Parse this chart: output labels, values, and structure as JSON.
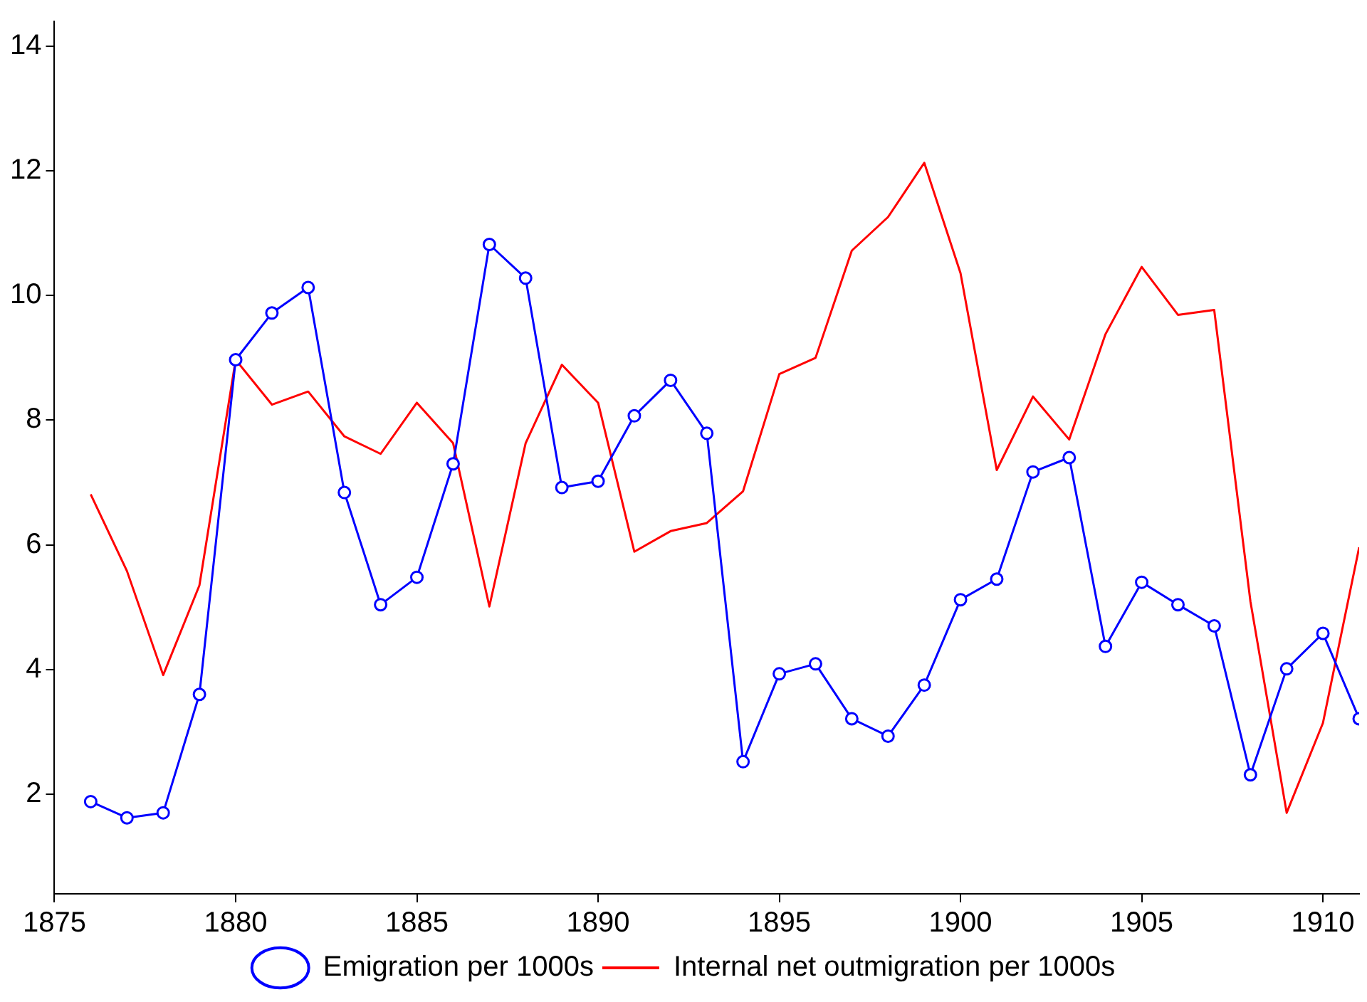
{
  "chart_data": {
    "type": "line",
    "x": [
      1876,
      1877,
      1878,
      1879,
      1880,
      1881,
      1882,
      1883,
      1884,
      1885,
      1886,
      1887,
      1888,
      1889,
      1890,
      1891,
      1892,
      1893,
      1894,
      1895,
      1896,
      1897,
      1898,
      1899,
      1900,
      1901,
      1902,
      1903,
      1904,
      1905,
      1906,
      1907,
      1908,
      1909,
      1910,
      1911
    ],
    "series": [
      {
        "name": "Emigration per 1000s",
        "color": "#0000ff",
        "marker": "circle",
        "values": [
          1.88,
          1.62,
          1.7,
          3.6,
          8.97,
          9.72,
          10.13,
          6.84,
          5.04,
          5.48,
          7.3,
          10.82,
          10.28,
          6.92,
          7.02,
          8.07,
          8.64,
          7.79,
          2.52,
          3.93,
          4.09,
          3.21,
          2.93,
          3.75,
          5.12,
          5.45,
          7.17,
          7.4,
          4.37,
          5.4,
          5.04,
          4.7,
          2.31,
          4.01,
          4.58,
          3.21
        ]
      },
      {
        "name": "Internal net outmigration per 1000s",
        "color": "#ff0000",
        "marker": "none",
        "values": [
          6.81,
          5.58,
          3.91,
          5.35,
          8.97,
          8.25,
          8.46,
          7.74,
          7.46,
          8.28,
          7.63,
          5.01,
          7.63,
          8.89,
          8.28,
          5.89,
          6.22,
          6.35,
          6.86,
          8.74,
          9.0,
          10.72,
          11.26,
          12.13,
          10.36,
          7.2,
          8.38,
          7.69,
          9.38,
          10.46,
          9.69,
          9.77,
          5.09,
          1.7,
          3.14,
          5.96
        ]
      }
    ],
    "xlim": [
      1875,
      1911
    ],
    "xticks": [
      1875,
      1880,
      1885,
      1890,
      1895,
      1900,
      1905,
      1910
    ],
    "ylim": [
      0.4,
      14.4
    ],
    "yticks": [
      2,
      4,
      6,
      8,
      10,
      12,
      14
    ],
    "grid": false,
    "legend": "bottom"
  }
}
